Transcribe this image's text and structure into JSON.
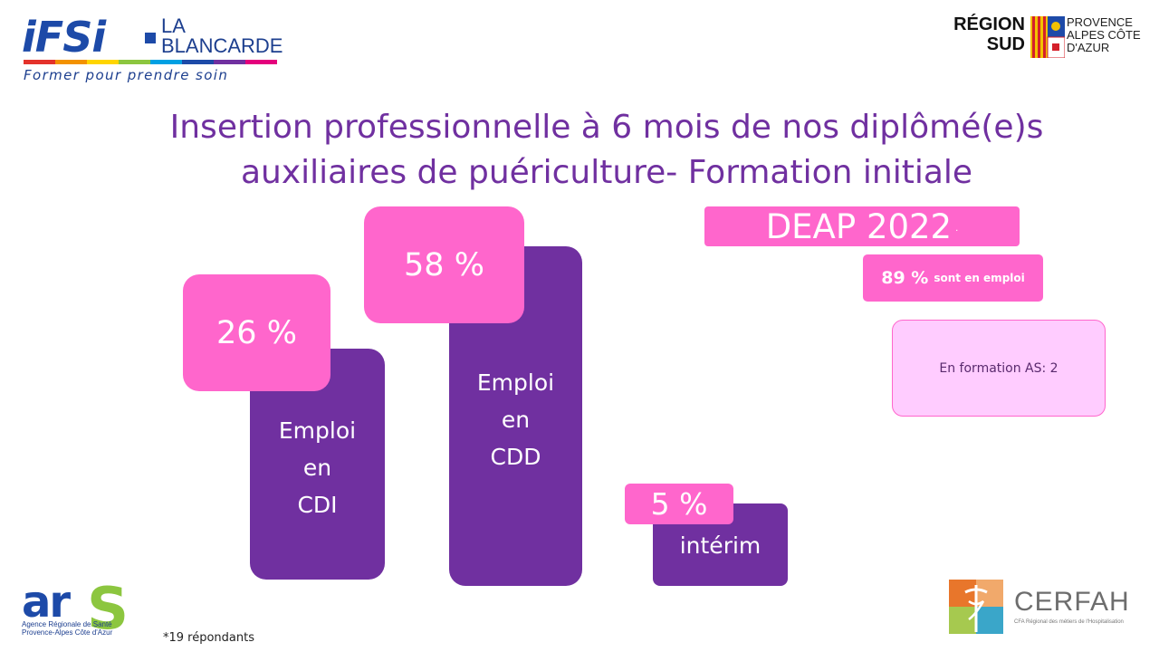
{
  "header": {
    "ifsi_logo": {
      "mark": "iFSi",
      "name": "LA BLANCARDE",
      "tagline": "Former pour prendre soin"
    },
    "region_logo": {
      "word": "RÉGION SUD",
      "sub": "PROVENCE ALPES CÔTE D'AZUR"
    }
  },
  "title": "Insertion professionnelle à 6 mois de nos diplômé(e)s auxiliaires de puériculture- Formation initiale",
  "chart_data": {
    "type": "bar",
    "categories": [
      "Emploi en CDI",
      "Emploi en CDD",
      "intérim"
    ],
    "values": [
      26,
      58,
      5
    ],
    "data_labels": [
      "26 %",
      "58 %",
      "5 %"
    ]
  },
  "bars": [
    {
      "label_lines": [
        "Emploi",
        "en",
        "CDI"
      ],
      "pct_label": "26 %"
    },
    {
      "label_lines": [
        "Emploi",
        "en",
        "CDD"
      ],
      "pct_label": "58 %"
    },
    {
      "label_lines": [
        "intérim"
      ],
      "pct_label": "5 %"
    }
  ],
  "summary": {
    "deap_title": "DEAP 2022",
    "deap_dot": "·",
    "emploi_value": "89 %",
    "emploi_text": "sont en emploi",
    "formation_text": "En formation AS: 2"
  },
  "footer": {
    "footnote": "*19 répondants",
    "ars_logo": {
      "word": "ar",
      "s": "S",
      "sub": "Agence Régionale de Santé Provence-Alpes Côte d'Azur"
    },
    "cerfah_logo": {
      "word": "CERFAH",
      "sub": "CFA Régional des métiers de l'Hospitalisation"
    }
  },
  "colors": {
    "bar": "#7030a0",
    "label_pink": "#ff66cc",
    "title": "#7030a0",
    "light_pink": "#ffccff"
  }
}
